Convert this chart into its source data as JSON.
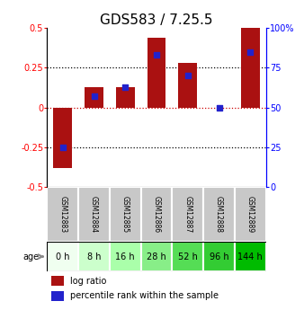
{
  "title": "GDS583 / 7.25.5",
  "samples": [
    "GSM12883",
    "GSM12884",
    "GSM12885",
    "GSM12886",
    "GSM12887",
    "GSM12888",
    "GSM12889"
  ],
  "ages": [
    "0 h",
    "8 h",
    "16 h",
    "28 h",
    "52 h",
    "96 h",
    "144 h"
  ],
  "log_ratio": [
    -0.38,
    0.13,
    0.13,
    0.44,
    0.28,
    0.0,
    0.5
  ],
  "percentile_rank": [
    25,
    57,
    63,
    83,
    70,
    50,
    85
  ],
  "ylim": [
    -0.5,
    0.5
  ],
  "right_ylim": [
    0,
    100
  ],
  "bar_color": "#AA1111",
  "dot_color": "#2222CC",
  "zero_line_color": "#CC0000",
  "title_fontsize": 11,
  "age_colors": [
    "#F0FFF0",
    "#CCFFCC",
    "#AAFFAA",
    "#88EE88",
    "#55DD55",
    "#33CC33",
    "#00BB00"
  ],
  "sample_bg_color": "#C8C8C8",
  "legend_red": "log ratio",
  "legend_blue": "percentile rank within the sample"
}
